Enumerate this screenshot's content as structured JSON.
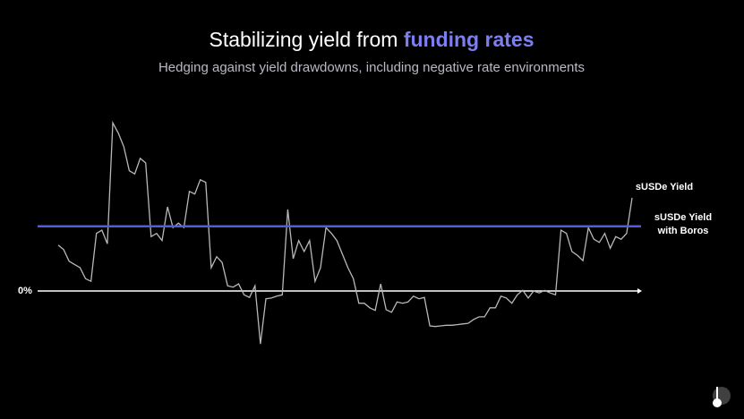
{
  "chart_data": {
    "type": "line",
    "title": "Stabilizing yield from",
    "title_highlight": "funding rates",
    "title_highlight_color": "#7b7ff0",
    "subtitle": "Hedging against yield drawdowns, including negative rate environments",
    "ylim": [
      -9,
      27
    ],
    "yticks": [
      {
        "value": 0,
        "label": "0%"
      }
    ],
    "series": [
      {
        "name": "sUSDe Yield",
        "color": "#b8b8b8",
        "values": [
          7.1,
          6.4,
          4.6,
          4.1,
          3.6,
          1.9,
          1.5,
          8.9,
          9.4,
          7.3,
          26.0,
          24.4,
          22.3,
          18.6,
          18.1,
          20.5,
          19.8,
          8.4,
          8.9,
          7.8,
          13.0,
          9.8,
          10.5,
          9.8,
          15.4,
          15.0,
          17.2,
          16.8,
          3.6,
          5.3,
          4.4,
          0.8,
          0.6,
          1.1,
          -0.6,
          -1.0,
          0.8,
          -8.2,
          -1.2,
          -1.1,
          -0.8,
          -0.6,
          12.6,
          5.0,
          7.8,
          6.1,
          7.8,
          1.5,
          3.6,
          9.8,
          8.9,
          7.8,
          5.7,
          3.6,
          1.9,
          -1.9,
          -1.9,
          -2.6,
          -3.0,
          1.1,
          -2.9,
          -3.3,
          -1.7,
          -1.9,
          -1.7,
          -0.8,
          -1.2,
          -1.0,
          -5.4,
          -5.5,
          -5.4,
          -5.3,
          -5.3,
          -5.2,
          -5.1,
          -5.0,
          -4.4,
          -4.0,
          -4.0,
          -2.6,
          -2.6,
          -0.8,
          -1.1,
          -1.9,
          -0.6,
          0.1,
          -1.1,
          0,
          -0.3,
          0.1,
          -0.3,
          -0.6,
          9.4,
          8.9,
          6.1,
          5.5,
          4.7,
          9.8,
          8.0,
          7.5,
          8.9,
          6.6,
          8.4,
          8.0,
          8.9,
          14.4
        ]
      },
      {
        "name": "sUSDe Yield with Boros",
        "color": "#4d5ee0",
        "values": [
          10
        ]
      }
    ]
  }
}
